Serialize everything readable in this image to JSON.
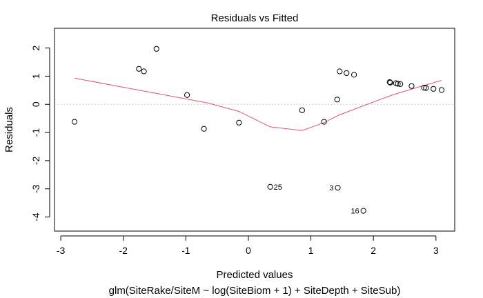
{
  "chart_data": {
    "type": "scatter",
    "title": "Residuals vs Fitted",
    "xlabel": "Predicted values",
    "xlabel2": "glm(SiteRake/SiteM ~ log(SiteBiom + 1) + SiteDepth + SiteSub)",
    "ylabel": "Residuals",
    "xlim": [
      -3.1,
      3.3
    ],
    "ylim": [
      -4.5,
      2.7
    ],
    "xticks": [
      -3,
      -2,
      -1,
      0,
      1,
      2,
      3
    ],
    "yticks": [
      -4,
      -3,
      -2,
      -1,
      0,
      1,
      2
    ],
    "reference_line_y": 0,
    "grid": false,
    "points": [
      {
        "x": -2.78,
        "y": -0.62
      },
      {
        "x": -1.75,
        "y": 1.26
      },
      {
        "x": -1.67,
        "y": 1.17
      },
      {
        "x": -1.47,
        "y": 1.97
      },
      {
        "x": -0.98,
        "y": 0.33
      },
      {
        "x": -0.71,
        "y": -0.87
      },
      {
        "x": -0.15,
        "y": -0.65
      },
      {
        "x": 0.35,
        "y": -2.93,
        "label": "25"
      },
      {
        "x": 0.86,
        "y": -0.21
      },
      {
        "x": 1.21,
        "y": -0.62
      },
      {
        "x": 1.42,
        "y": 0.17
      },
      {
        "x": 1.43,
        "y": -2.96,
        "label": "3"
      },
      {
        "x": 1.46,
        "y": 1.17
      },
      {
        "x": 1.57,
        "y": 1.11
      },
      {
        "x": 1.69,
        "y": 1.05
      },
      {
        "x": 1.84,
        "y": -3.78,
        "label": "16"
      },
      {
        "x": 2.26,
        "y": 0.79
      },
      {
        "x": 2.27,
        "y": 0.77
      },
      {
        "x": 2.36,
        "y": 0.75
      },
      {
        "x": 2.39,
        "y": 0.73
      },
      {
        "x": 2.43,
        "y": 0.72
      },
      {
        "x": 2.61,
        "y": 0.65
      },
      {
        "x": 2.81,
        "y": 0.59
      },
      {
        "x": 2.84,
        "y": 0.58
      },
      {
        "x": 2.96,
        "y": 0.55
      },
      {
        "x": 3.09,
        "y": 0.51
      }
    ],
    "smooth_line": {
      "color": "#df536b",
      "points": [
        {
          "x": -2.78,
          "y": 0.93
        },
        {
          "x": -1.5,
          "y": 0.4
        },
        {
          "x": -0.65,
          "y": 0.05
        },
        {
          "x": -0.15,
          "y": -0.25
        },
        {
          "x": 0.35,
          "y": -0.8
        },
        {
          "x": 0.86,
          "y": -0.93
        },
        {
          "x": 1.21,
          "y": -0.65
        },
        {
          "x": 1.45,
          "y": -0.38
        },
        {
          "x": 1.84,
          "y": -0.05
        },
        {
          "x": 2.3,
          "y": 0.33
        },
        {
          "x": 2.7,
          "y": 0.6
        },
        {
          "x": 3.09,
          "y": 0.85
        }
      ]
    }
  }
}
